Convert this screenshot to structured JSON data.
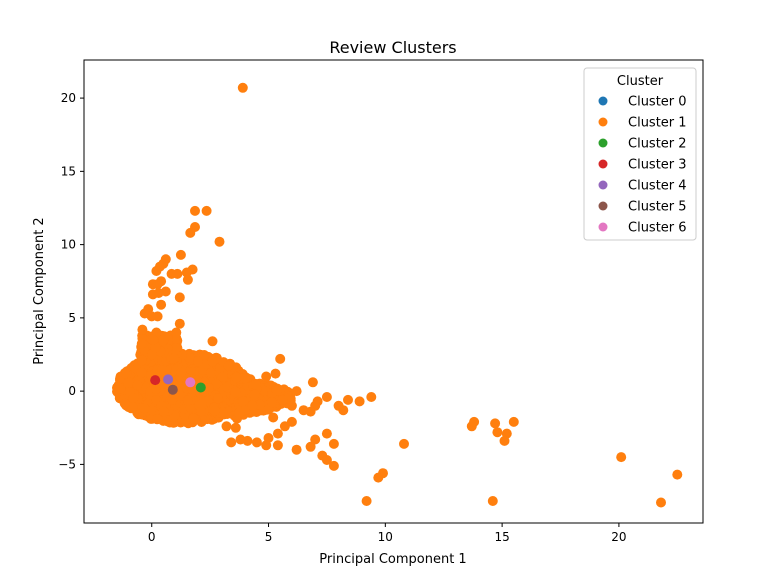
{
  "chart_data": {
    "type": "scatter",
    "title": "Review Clusters",
    "xlabel": "Principal Component 1",
    "ylabel": "Principal Component 2",
    "xlim": [
      -2.9,
      23.6
    ],
    "ylim": [
      -9.0,
      22.6
    ],
    "xticks": [
      0,
      5,
      10,
      15,
      20
    ],
    "yticks": [
      -5,
      0,
      5,
      10,
      15,
      20
    ],
    "grid": false,
    "legend": {
      "title": "Cluster",
      "placement": "top-right"
    },
    "series": [
      {
        "name": "Cluster 0",
        "color": "#1f77b4",
        "points": []
      },
      {
        "name": "Cluster 1",
        "color": "#ff7f0e",
        "core_cloud": {
          "x_range": [
            -1.5,
            4.2
          ],
          "y_range": [
            -2.2,
            2.6
          ]
        },
        "points": [
          [
            3.9,
            20.7
          ],
          [
            1.85,
            12.3
          ],
          [
            2.35,
            12.3
          ],
          [
            1.85,
            11.2
          ],
          [
            2.9,
            10.2
          ],
          [
            1.65,
            10.8
          ],
          [
            1.25,
            9.3
          ],
          [
            0.6,
            9.0
          ],
          [
            0.5,
            8.7
          ],
          [
            0.35,
            8.5
          ],
          [
            0.2,
            8.2
          ],
          [
            0.85,
            8.0
          ],
          [
            1.1,
            8.0
          ],
          [
            1.75,
            8.3
          ],
          [
            1.5,
            8.1
          ],
          [
            1.55,
            7.6
          ],
          [
            0.4,
            7.5
          ],
          [
            0.05,
            7.3
          ],
          [
            0.25,
            7.3
          ],
          [
            0.6,
            6.8
          ],
          [
            0.3,
            6.7
          ],
          [
            0.05,
            6.6
          ],
          [
            1.2,
            6.4
          ],
          [
            0.4,
            5.9
          ],
          [
            -0.15,
            5.6
          ],
          [
            -0.3,
            5.3
          ],
          [
            0.0,
            5.1
          ],
          [
            0.25,
            5.1
          ],
          [
            1.2,
            4.6
          ],
          [
            1.05,
            4.0
          ],
          [
            -0.4,
            4.2
          ],
          [
            0.2,
            4.0
          ],
          [
            2.6,
            3.4
          ],
          [
            0.05,
            3.5
          ],
          [
            0.5,
            3.5
          ],
          [
            5.5,
            2.2
          ],
          [
            5.3,
            1.2
          ],
          [
            4.9,
            1.0
          ],
          [
            6.9,
            0.6
          ],
          [
            6.2,
            0.0
          ],
          [
            5.6,
            -0.6
          ],
          [
            6.0,
            -1.0
          ],
          [
            6.5,
            -1.3
          ],
          [
            7.1,
            -0.7
          ],
          [
            7.5,
            -0.4
          ],
          [
            7.0,
            -1.0
          ],
          [
            6.8,
            -1.4
          ],
          [
            8.0,
            -1.0
          ],
          [
            8.2,
            -1.3
          ],
          [
            8.4,
            -0.6
          ],
          [
            8.9,
            -0.7
          ],
          [
            9.4,
            -0.4
          ],
          [
            5.2,
            -1.8
          ],
          [
            5.7,
            -2.4
          ],
          [
            5.4,
            -2.9
          ],
          [
            6.0,
            -2.1
          ],
          [
            5.0,
            -3.2
          ],
          [
            4.5,
            -3.5
          ],
          [
            4.9,
            -3.7
          ],
          [
            5.4,
            -3.7
          ],
          [
            6.2,
            -4.0
          ],
          [
            7.0,
            -3.3
          ],
          [
            7.5,
            -2.9
          ],
          [
            7.8,
            -3.6
          ],
          [
            6.8,
            -3.8
          ],
          [
            7.3,
            -4.4
          ],
          [
            7.5,
            -4.7
          ],
          [
            7.8,
            -5.1
          ],
          [
            4.1,
            -3.4
          ],
          [
            3.8,
            -3.3
          ],
          [
            3.4,
            -3.5
          ],
          [
            3.6,
            -2.5
          ],
          [
            3.2,
            -2.4
          ],
          [
            9.9,
            -5.6
          ],
          [
            9.7,
            -5.9
          ],
          [
            9.2,
            -7.5
          ],
          [
            10.8,
            -3.6
          ],
          [
            13.7,
            -2.4
          ],
          [
            13.8,
            -2.1
          ],
          [
            14.7,
            -2.2
          ],
          [
            14.8,
            -2.8
          ],
          [
            15.2,
            -2.9
          ],
          [
            15.1,
            -3.4
          ],
          [
            15.5,
            -2.1
          ],
          [
            14.6,
            -7.5
          ],
          [
            20.1,
            -4.5
          ],
          [
            22.5,
            -5.7
          ],
          [
            21.8,
            -7.6
          ]
        ]
      },
      {
        "name": "Cluster 2",
        "color": "#2ca02c",
        "points": [
          [
            2.1,
            0.25
          ]
        ]
      },
      {
        "name": "Cluster 3",
        "color": "#d62728",
        "points": [
          [
            0.15,
            0.75
          ]
        ]
      },
      {
        "name": "Cluster 4",
        "color": "#9467bd",
        "points": [
          [
            0.7,
            0.8
          ]
        ]
      },
      {
        "name": "Cluster 5",
        "color": "#8c564b",
        "points": [
          [
            0.9,
            0.1
          ]
        ]
      },
      {
        "name": "Cluster 6",
        "color": "#e377c2",
        "points": [
          [
            1.65,
            0.6
          ]
        ]
      }
    ]
  }
}
